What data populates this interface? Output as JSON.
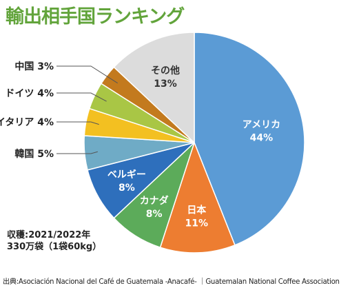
{
  "title": "輸出相手国ランキング",
  "chart_data": {
    "type": "pie",
    "title": "輸出相手国ランキング",
    "slices": [
      {
        "name": "アメリカ",
        "value": 44,
        "label": "44%",
        "color": "#5b9bd5"
      },
      {
        "name": "日本",
        "value": 11,
        "label": "11%",
        "color": "#ed7d31"
      },
      {
        "name": "カナダ",
        "value": 8,
        "label": "8%",
        "color": "#5cab5a"
      },
      {
        "name": "ベルギー",
        "value": 8,
        "label": "8%",
        "color": "#2e6fbc"
      },
      {
        "name": "韓国",
        "value": 5,
        "label": "5%",
        "color": "#6fabc6"
      },
      {
        "name": "イタリア",
        "value": 4,
        "label": "4%",
        "color": "#f3c021"
      },
      {
        "name": "ドイツ",
        "value": 4,
        "label": "4%",
        "color": "#a9c645"
      },
      {
        "name": "中国",
        "value": 3,
        "label": "3%",
        "color": "#c37a1e"
      },
      {
        "name": "その他",
        "value": 13,
        "label": "13%",
        "color": "#dcdcdc"
      }
    ]
  },
  "harvest_line1": "収穫:2021/2022年",
  "harvest_line2": "330万袋（1袋60kg）",
  "source": "出典:Asociación Nacional del Café de Guatemala -Anacafé- ｜Guatemalan National Coffee Association"
}
